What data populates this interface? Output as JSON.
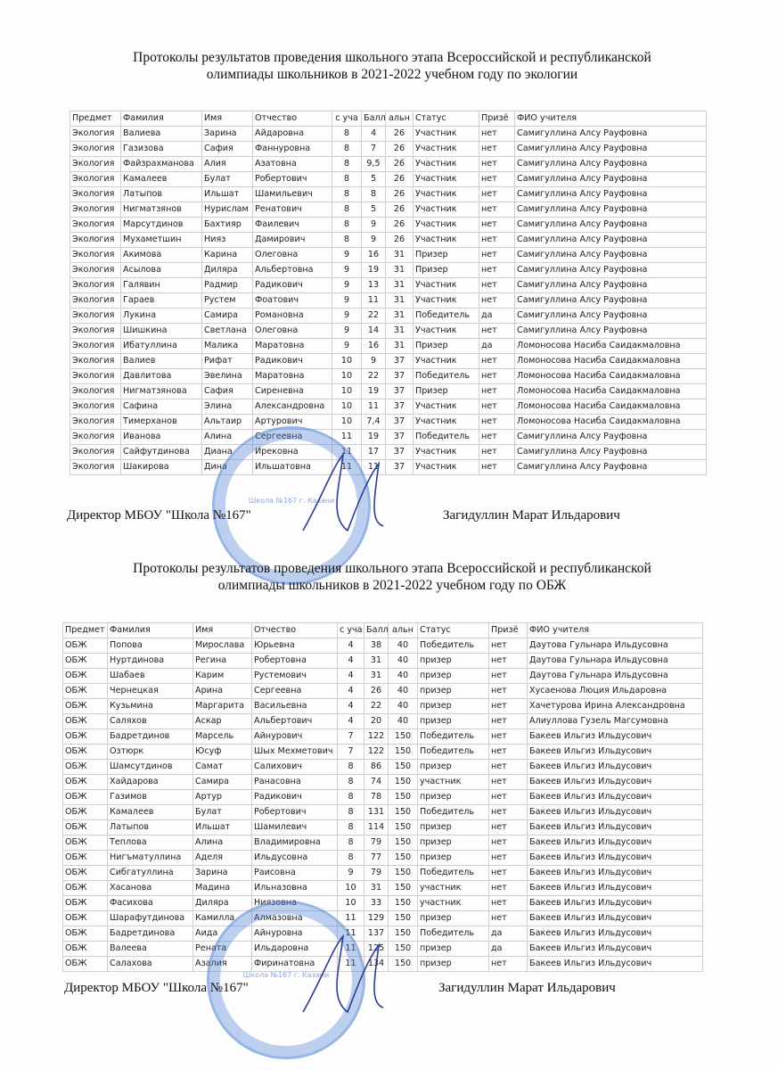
{
  "section1": {
    "title_line1": "Протоколы результатов проведения школьного этапа Всероссийской  и республиканской",
    "title_line2": "олимпиады школьников в 2021-2022 учебном году по экологии",
    "headers": [
      "Предмет",
      "Фамилия",
      "Имя",
      "Отчество",
      "с уча",
      "Балл",
      "альн",
      "Статус",
      "Призё",
      "ФИО учителя"
    ],
    "rows": [
      [
        "Экология",
        "Валиева",
        "Зарина",
        "Айдаровна",
        "8",
        "4",
        "26",
        "Участник",
        "нет",
        "Самигуллина Алсу Рауфовна"
      ],
      [
        "Экология",
        "Газизова",
        "Сафия",
        "Фаннуровна",
        "8",
        "7",
        "26",
        "Участник",
        "нет",
        "Самигуллина Алсу Рауфовна"
      ],
      [
        "Экология",
        "Файзрахманова",
        "Алия",
        "Азатовна",
        "8",
        "9,5",
        "26",
        "Участник",
        "нет",
        "Самигуллина Алсу Рауфовна"
      ],
      [
        "Экология",
        "Камалеев",
        "Булат",
        "Робертович",
        "8",
        "5",
        "26",
        "Участник",
        "нет",
        "Самигуллина Алсу Рауфовна"
      ],
      [
        "Экология",
        "Латыпов",
        "Ильшат",
        "Шамильевич",
        "8",
        "8",
        "26",
        "Участник",
        "нет",
        "Самигуллина Алсу Рауфовна"
      ],
      [
        "Экология",
        "Нигматзянов",
        "Нурислам",
        "Ренатович",
        "8",
        "5",
        "26",
        "Участник",
        "нет",
        "Самигуллина Алсу Рауфовна"
      ],
      [
        "Экология",
        "Марсутдинов",
        "Бахтияр",
        "Фаилевич",
        "8",
        "9",
        "26",
        "Участник",
        "нет",
        "Самигуллина Алсу Рауфовна"
      ],
      [
        "Экология",
        "Мухаметшин",
        "Нияз",
        "Дамирович",
        "8",
        "9",
        "26",
        "Участник",
        "нет",
        "Самигуллина Алсу Рауфовна"
      ],
      [
        "Экология",
        "Акимова",
        "Карина",
        "Олеговна",
        "9",
        "16",
        "31",
        "Призер",
        "нет",
        "Самигуллина Алсу Рауфовна"
      ],
      [
        "Экология",
        "Асылова",
        "Диляра",
        "Альбертовна",
        "9",
        "19",
        "31",
        "Призер",
        "нет",
        "Самигуллина Алсу Рауфовна"
      ],
      [
        "Экология",
        "Галявин",
        "Радмир",
        "Радикович",
        "9",
        "13",
        "31",
        "Участник",
        "нет",
        "Самигуллина Алсу Рауфовна"
      ],
      [
        "Экология",
        "Гараев",
        "Рустем",
        "Фоатович",
        "9",
        "11",
        "31",
        "Участник",
        "нет",
        "Самигуллина Алсу Рауфовна"
      ],
      [
        "Экология",
        "Лукина",
        "Самира",
        "Романовна",
        "9",
        "22",
        "31",
        "Победитель",
        "да",
        "Самигуллина Алсу Рауфовна"
      ],
      [
        "Экология",
        "Шишкина",
        "Светлана",
        "Олеговна",
        "9",
        "14",
        "31",
        "Участник",
        "нет",
        "Самигуллина Алсу Рауфовна"
      ],
      [
        "Экология",
        "Ибатуллина",
        "Малика",
        "Маратовна",
        "9",
        "16",
        "31",
        "Призер",
        "да",
        "Ломоносова Насиба Саидакмаловна"
      ],
      [
        "Экология",
        "Валиев",
        "Рифат",
        "Радикович",
        "10",
        "9",
        "37",
        "Участник",
        "нет",
        "Ломоносова Насиба Саидакмаловна"
      ],
      [
        "Экология",
        "Давлитова",
        "Эвелина",
        "Маратовна",
        "10",
        "22",
        "37",
        "Победитель",
        "нет",
        "Ломоносова Насиба Саидакмаловна"
      ],
      [
        "Экология",
        "Нигматзянова",
        "Сафия",
        "Сиреневна",
        "10",
        "19",
        "37",
        "Призер",
        "нет",
        "Ломоносова Насиба Саидакмаловна"
      ],
      [
        "Экология",
        "Сафина",
        "Элина",
        "Александровна",
        "10",
        "11",
        "37",
        "Участник",
        "нет",
        "Ломоносова Насиба Саидакмаловна"
      ],
      [
        "Экология",
        "Тимерханов",
        "Альтаир",
        "Артурович",
        "10",
        "7,4",
        "37",
        "Участник",
        "нет",
        "Ломоносова Насиба Саидакмаловна"
      ],
      [
        "Экология",
        "Иванова",
        "Алина",
        "Сергеевна",
        "11",
        "19",
        "37",
        "Победитель",
        "нет",
        "Самигуллина Алсу Рауфовна"
      ],
      [
        "Экология",
        "Сайфутдинова",
        "Диана",
        "Ирековна",
        "11",
        "17",
        "37",
        "Участник",
        "нет",
        "Самигуллина Алсу Рауфовна"
      ],
      [
        "Экология",
        "Шакирова",
        "Дина",
        "Ильшатовна",
        "11",
        "11",
        "37",
        "Участник",
        "нет",
        "Самигуллина Алсу Рауфовна"
      ]
    ],
    "director_label": "Директор МБОУ \"Школа №167\"",
    "director_name": "Загидуллин Марат Ильдарович"
  },
  "section2": {
    "title_line1": "Протоколы результатов проведения школьного этапа Всероссийской  и республиканской",
    "title_line2": "олимпиады школьников в 2021-2022 учебном году по ОБЖ",
    "headers": [
      "Предмет",
      "Фамилия",
      "Имя",
      "Отчество",
      "с уча",
      "Балл",
      "альн",
      "Статус",
      "Призё",
      "ФИО учителя"
    ],
    "rows": [
      [
        "ОБЖ",
        "Попова",
        "Мирослава",
        "Юрьевна",
        "4",
        "38",
        "40",
        "Победитель",
        "нет",
        "Даутова Гульнара Ильдусовна"
      ],
      [
        "ОБЖ",
        "Нуртдинова",
        "Регина",
        "Робертовна",
        "4",
        "31",
        "40",
        "призер",
        "нет",
        "Даутова Гульнара Ильдусовна"
      ],
      [
        "ОБЖ",
        "Шабаев",
        "Карим",
        "Рустемович",
        "4",
        "31",
        "40",
        "призер",
        "нет",
        "Даутова Гульнара Ильдусовна"
      ],
      [
        "ОБЖ",
        "Чернецкая",
        "Арина",
        "Сергеевна",
        "4",
        "26",
        "40",
        "призер",
        "нет",
        "Хусаенова Люция Ильдаровна"
      ],
      [
        "ОБЖ",
        "Кузьмина",
        "Маргарита",
        "Васильевна",
        "4",
        "22",
        "40",
        "призер",
        "нет",
        "Хачетурова Ирина Александровна"
      ],
      [
        "ОБЖ",
        "Саляхов",
        "Аскар",
        "Альбертович",
        "4",
        "20",
        "40",
        "призер",
        "нет",
        "Алиуллова Гузель Магсумовна"
      ],
      [
        "ОБЖ",
        "Бадретдинов",
        "Марсель",
        "Айнурович",
        "7",
        "122",
        "150",
        "Победитель",
        "нет",
        "Бакеев Ильгиз Ильдусович"
      ],
      [
        "ОБЖ",
        "Озтюрк",
        "Юсуф",
        "Шых Мехметович",
        "7",
        "122",
        "150",
        "Победитель",
        "нет",
        "Бакеев Ильгиз Ильдусович"
      ],
      [
        "ОБЖ",
        "Шамсутдинов",
        "Самат",
        "Салихович",
        "8",
        "86",
        "150",
        "призер",
        "нет",
        "Бакеев Ильгиз Ильдусович"
      ],
      [
        "ОБЖ",
        "Хайдарова",
        "Самира",
        "Ранасовна",
        "8",
        "74",
        "150",
        "участник",
        "нет",
        "Бакеев Ильгиз Ильдусович"
      ],
      [
        "ОБЖ",
        "Газимов",
        "Артур",
        "Радикович",
        "8",
        "78",
        "150",
        "призер",
        "нет",
        "Бакеев Ильгиз Ильдусович"
      ],
      [
        "ОБЖ",
        "Камалеев",
        "Булат",
        "Робертович",
        "8",
        "131",
        "150",
        "Победитель",
        "нет",
        "Бакеев Ильгиз Ильдусович"
      ],
      [
        "ОБЖ",
        "Латыпов",
        "Ильшат",
        "Шамилевич",
        "8",
        "114",
        "150",
        "призер",
        "нет",
        "Бакеев Ильгиз Ильдусович"
      ],
      [
        "ОБЖ",
        "Теплова",
        "Алина",
        "Владимировна",
        "8",
        "79",
        "150",
        "призер",
        "нет",
        "Бакеев Ильгиз Ильдусович"
      ],
      [
        "ОБЖ",
        "Нигъматуллина",
        "Аделя",
        "Ильдусовна",
        "8",
        "77",
        "150",
        "призер",
        "нет",
        "Бакеев Ильгиз Ильдусович"
      ],
      [
        "ОБЖ",
        "Сибгатуллина",
        "Зарина",
        "Раисовна",
        "9",
        "79",
        "150",
        "Победитель",
        "нет",
        "Бакеев Ильгиз Ильдусович"
      ],
      [
        "ОБЖ",
        "Хасанова",
        "Мадина",
        "Ильназовна",
        "10",
        "31",
        "150",
        "участник",
        "нет",
        "Бакеев Ильгиз Ильдусович"
      ],
      [
        "ОБЖ",
        "Фасихова",
        "Диляра",
        "Ниязовна",
        "10",
        "33",
        "150",
        "участник",
        "нет",
        "Бакеев Ильгиз Ильдусович"
      ],
      [
        "ОБЖ",
        "Шарафутдинова",
        "Камилла",
        "Алмазовна",
        "11",
        "129",
        "150",
        "призер",
        "нет",
        "Бакеев Ильгиз Ильдусович"
      ],
      [
        "ОБЖ",
        "Бадретдинова",
        "Аида",
        "Айнуровна",
        "11",
        "137",
        "150",
        "Победитель",
        "да",
        "Бакеев Ильгиз Ильдусович"
      ],
      [
        "ОБЖ",
        "Валеева",
        "Рената",
        "Ильдаровна",
        "11",
        "125",
        "150",
        "призер",
        "да",
        "Бакеев Ильгиз Ильдусович"
      ],
      [
        "ОБЖ",
        "Салахова",
        "Азалия",
        "Фиринатовна",
        "11",
        "134",
        "150",
        "призер",
        "нет",
        "Бакеев Ильгиз Ильдусович"
      ]
    ],
    "director_label": "Директор МБОУ \"Школа №167\"",
    "director_name": "Загидуллин Марат Ильдарович"
  },
  "stamp_text": "Школа №167 г. Казани",
  "stamp_color": "#4678d2"
}
